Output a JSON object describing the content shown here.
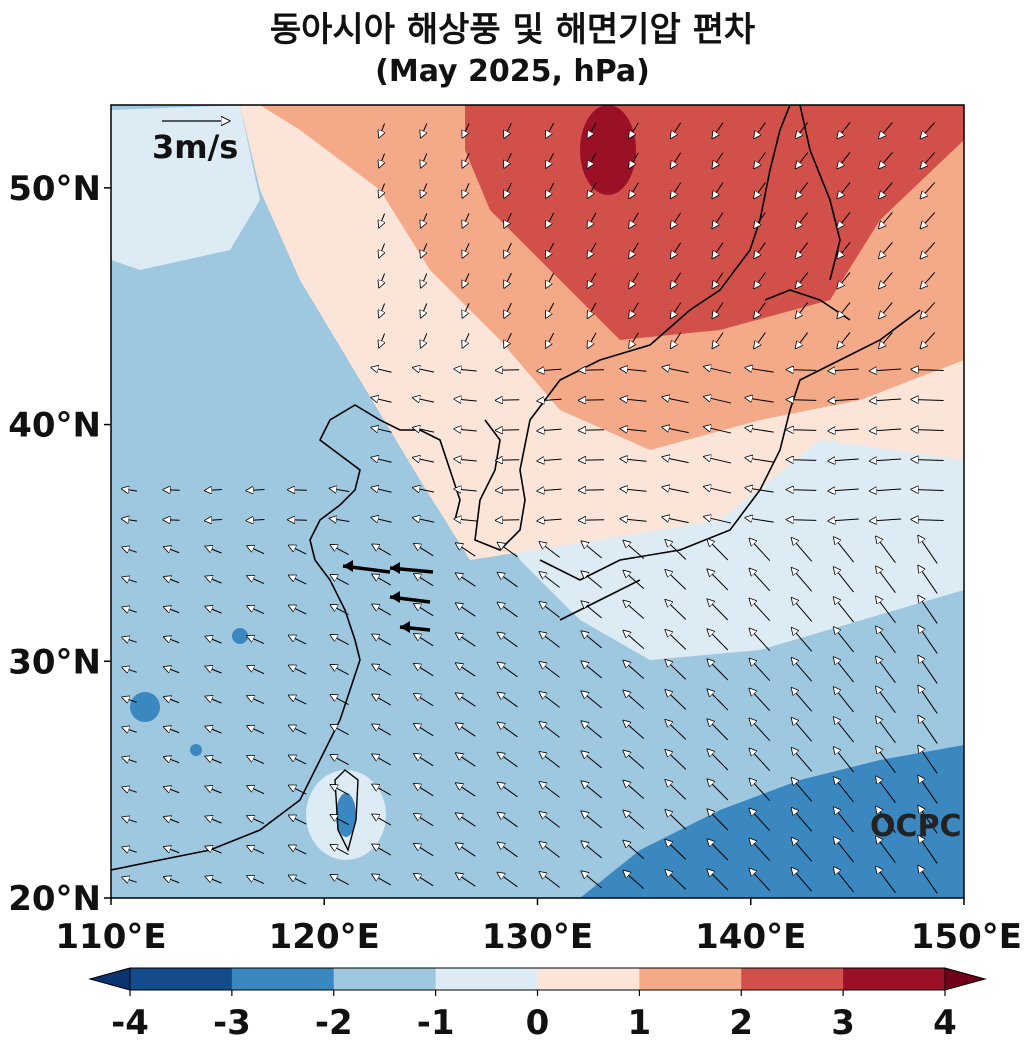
{
  "title": "동아시아 해상풍 및 해면기압 편차",
  "subtitle": "(May 2025, hPa)",
  "map": {
    "lon_range": [
      110,
      150
    ],
    "lat_range": [
      20,
      53.5
    ],
    "lon_ticks": [
      "110°E",
      "120°E",
      "130°E",
      "140°E",
      "150°E"
    ],
    "lat_ticks": [
      "20°N",
      "30°N",
      "40°N",
      "50°N"
    ],
    "reference_vector_label": "3m/s",
    "watermark": "OCPC"
  },
  "colorbar": {
    "ticks": [
      "-4",
      "-3",
      "-2",
      "-1",
      "0",
      "1",
      "2",
      "3",
      "4"
    ],
    "colors": [
      "#134b8b",
      "#3b87c0",
      "#9ec8e0",
      "#ddebf4",
      "#fbe4d8",
      "#f4a988",
      "#d1514a",
      "#9a1127"
    ],
    "under_color": "#0a3470",
    "over_color": "#70001a"
  }
}
